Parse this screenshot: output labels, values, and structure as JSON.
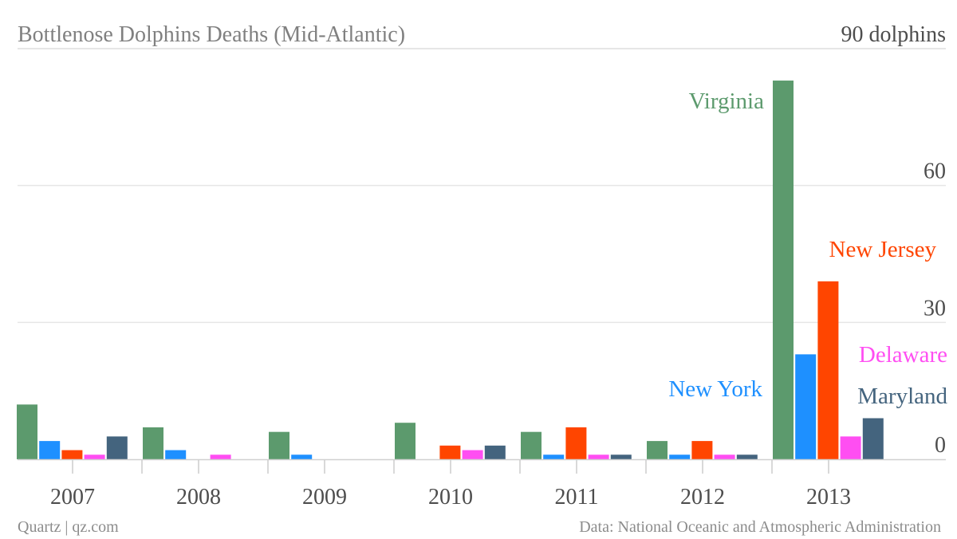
{
  "chart_data": {
    "type": "bar",
    "title": "Bottlenose Dolphins Deaths (Mid-Atlantic)",
    "unit_label": "90 dolphins",
    "categories": [
      "2007",
      "2008",
      "2009",
      "2010",
      "2011",
      "2012",
      "2013"
    ],
    "ylim": [
      0,
      90
    ],
    "yticks": [
      0,
      30,
      60
    ],
    "grid": true,
    "series": [
      {
        "name": "Virginia",
        "color": "#5c9a6d",
        "values": [
          12,
          7,
          6,
          8,
          6,
          4,
          83
        ]
      },
      {
        "name": "New York",
        "color": "#1e90ff",
        "values": [
          4,
          2,
          1,
          0,
          1,
          1,
          23
        ]
      },
      {
        "name": "New Jersey",
        "color": "#ff4500",
        "values": [
          2,
          0,
          0,
          3,
          7,
          4,
          39
        ]
      },
      {
        "name": "Delaware",
        "color": "#ff4ef2",
        "values": [
          1,
          1,
          0,
          2,
          1,
          1,
          5
        ]
      },
      {
        "name": "Maryland",
        "color": "#44647e",
        "values": [
          5,
          0,
          0,
          3,
          1,
          1,
          9
        ]
      }
    ]
  },
  "footer": {
    "source_left": "Quartz | qz.com",
    "source_right": "Data: National Oceanic and Atmospheric Administration"
  }
}
